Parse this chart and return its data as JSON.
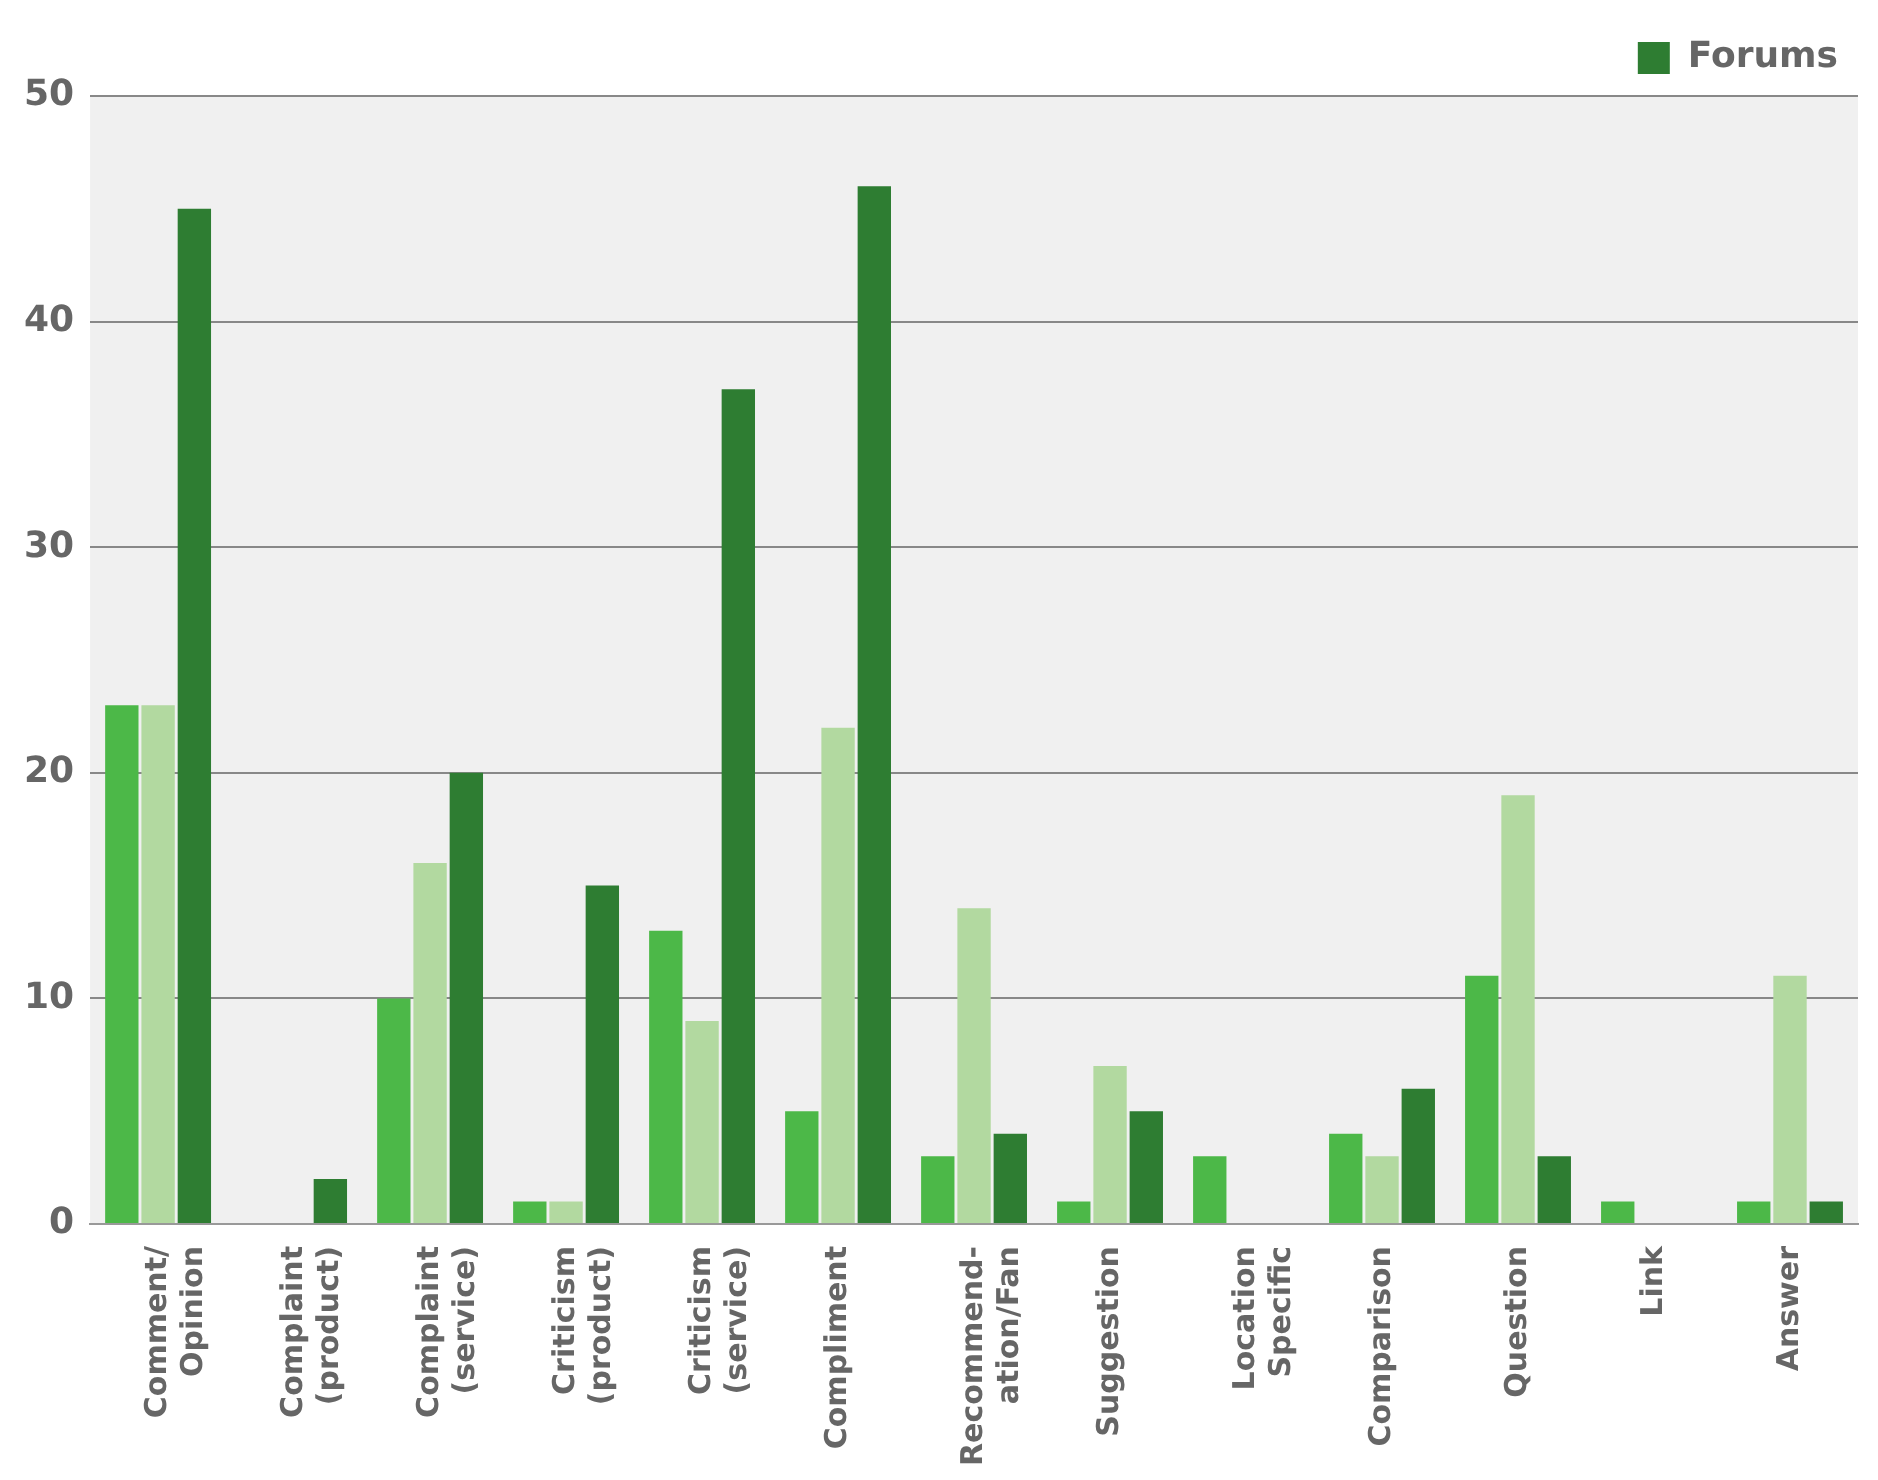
{
  "chart_data": {
    "type": "bar",
    "categories": [
      "Comment/\nOpinion",
      "Complaint\n(product)",
      "Complaint\n(service)",
      "Criticism\n(product)",
      "Criticism\n(service)",
      "Compliment",
      "Recommend-\nation/Fan",
      "Suggestion",
      "Location\nSpecific",
      "Comparison",
      "Question",
      "Link",
      "Answer"
    ],
    "series": [
      {
        "color": "#4cb848",
        "values": [
          23,
          0,
          10,
          1,
          13,
          5,
          3,
          1,
          3,
          4,
          11,
          1,
          1
        ]
      },
      {
        "color": "#b2d9a0",
        "values": [
          23,
          0,
          16,
          1,
          9,
          22,
          14,
          7,
          0,
          3,
          19,
          0,
          11
        ]
      },
      {
        "name": "Forums",
        "color": "#2e7d32",
        "values": [
          45,
          2,
          20,
          15,
          37,
          46,
          4,
          5,
          0,
          6,
          3,
          0,
          1
        ]
      }
    ],
    "ylim": [
      0,
      50
    ],
    "yticks": [
      0,
      10,
      20,
      30,
      40,
      50
    ],
    "grid": "y",
    "legend": "top right"
  }
}
